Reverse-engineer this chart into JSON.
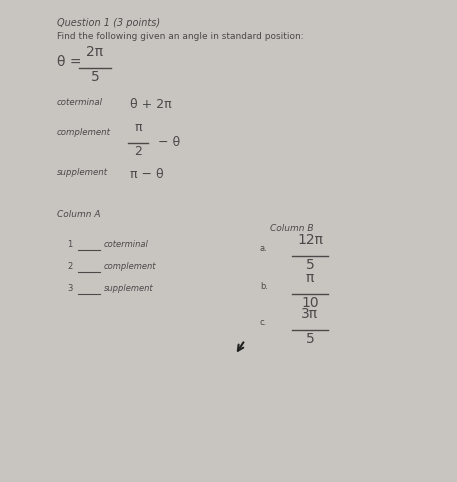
{
  "bg_color": "#c8c4c0",
  "title": "Question 1 (3 points)",
  "subtitle": "Find the following given an angle in standard position:",
  "theta_label": "θ =",
  "theta_num": "2π",
  "theta_den": "5",
  "coterminal_label": "coterminal",
  "coterminal_formula": "θ + 2π",
  "complement_label": "complement",
  "complement_num": "π",
  "complement_den": "2",
  "complement_dash": "− θ",
  "supplement_label": "supplement",
  "supplement_formula": "π − θ",
  "col_a_title": "Column A",
  "col_b_title": "Column B",
  "col_a_items": [
    {
      "num": "1",
      "label": "coterminal"
    },
    {
      "num": "2",
      "label": "complement"
    },
    {
      "num": "3",
      "label": "supplement"
    }
  ],
  "col_b_items": [
    {
      "letter": "a.",
      "num": "12π",
      "den": "5"
    },
    {
      "letter": "b.",
      "num": "π",
      "den": "10"
    },
    {
      "letter": "c.",
      "num": "3π",
      "den": "5"
    }
  ],
  "text_color": "#4a4a4a",
  "line_color": "#4a4a4a"
}
